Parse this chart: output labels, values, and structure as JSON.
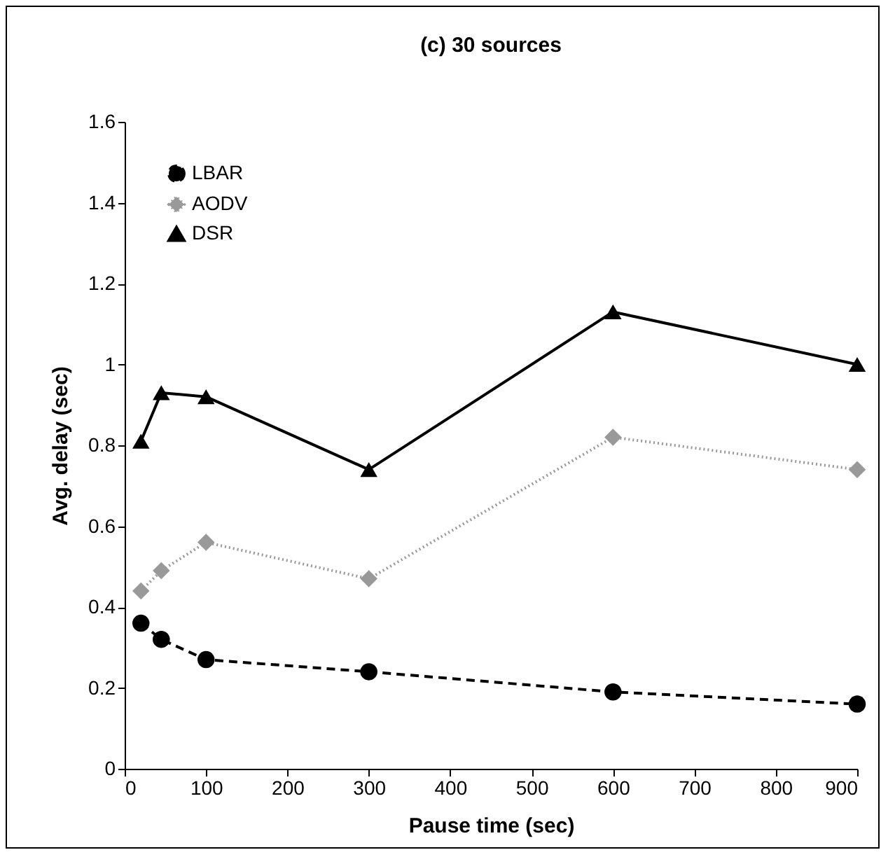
{
  "chart_data": {
    "type": "line",
    "title": "(c) 30 sources",
    "xlabel": "Pause time (sec)",
    "ylabel": "Avg. delay (sec)",
    "x": [
      20,
      45,
      100,
      300,
      600,
      900
    ],
    "series": [
      {
        "name": "LBAR",
        "color": "#000000",
        "marker": "circle",
        "line_style": "dashed",
        "values": [
          0.36,
          0.32,
          0.27,
          0.24,
          0.19,
          0.16
        ]
      },
      {
        "name": "AODV",
        "color": "#999999",
        "marker": "diamond",
        "line_style": "dotted",
        "values": [
          0.44,
          0.49,
          0.56,
          0.47,
          0.82,
          0.74
        ]
      },
      {
        "name": "DSR",
        "color": "#000000",
        "marker": "triangle",
        "line_style": "solid",
        "values": [
          0.81,
          0.93,
          0.92,
          0.74,
          1.13,
          1.0
        ]
      }
    ],
    "xlim": [
      0,
      900
    ],
    "xticks": [
      0,
      100,
      200,
      300,
      400,
      500,
      600,
      700,
      800,
      900
    ],
    "ylim": [
      0,
      1.6
    ],
    "yticks": [
      0,
      0.2,
      0.4,
      0.6,
      0.8,
      1,
      1.2,
      1.4,
      1.6
    ],
    "grid": false,
    "legend": "top left"
  }
}
